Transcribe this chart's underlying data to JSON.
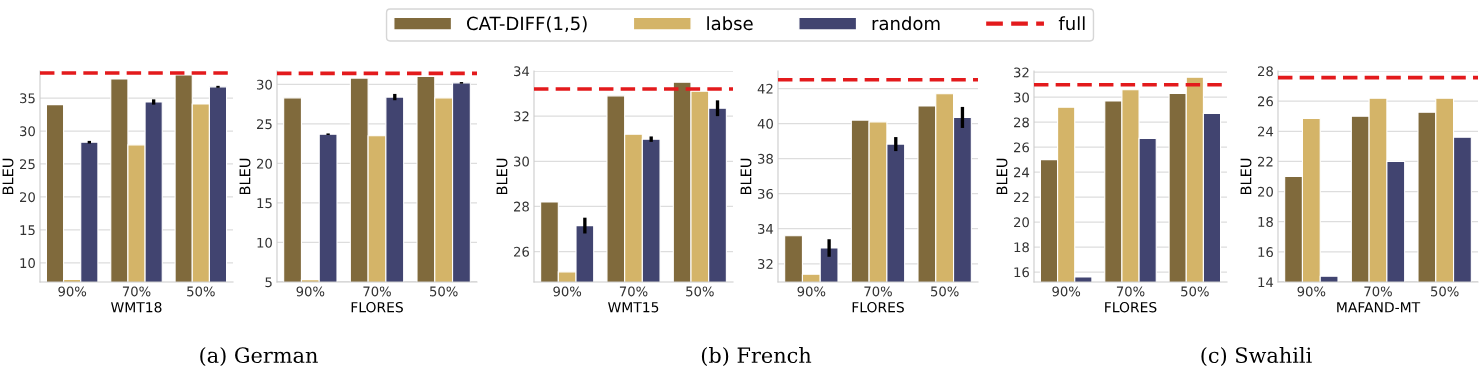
{
  "chart_data": [
    {
      "type": "bar",
      "xlabel": "WMT18",
      "ylabel": "BLEU",
      "categories": [
        "90%",
        "70%",
        "50%"
      ],
      "ylim": [
        7.1,
        39.1
      ],
      "yticks": [
        10,
        15,
        20,
        25,
        30,
        35
      ],
      "grid": "y",
      "legend": "top",
      "annotations": [
        "(a) German"
      ],
      "series": [
        {
          "name": "CAT-DIFF(1,5)",
          "color": "#806a3c",
          "values": [
            34.0,
            37.9,
            38.5
          ]
        },
        {
          "name": "labse",
          "color": "#d4b468",
          "values": [
            7.5,
            27.9,
            34.1
          ]
        },
        {
          "name": "random",
          "color": "#414470",
          "values": [
            28.3,
            34.4,
            36.7
          ],
          "errors": [
            0.2,
            0.4,
            0.15
          ]
        }
      ],
      "ref_lines": [
        {
          "axis": "y",
          "value": 38.8,
          "label": "full",
          "color": "#e31a1c",
          "line_style": "dashed"
        }
      ]
    },
    {
      "type": "bar",
      "xlabel": "FLORES",
      "ylabel": "BLEU",
      "categories": [
        "90%",
        "70%",
        "50%"
      ],
      "ylim": [
        5,
        31.7
      ],
      "yticks": [
        5,
        10,
        15,
        20,
        25,
        30
      ],
      "grid": "y",
      "series": [
        {
          "color": "#806a3c",
          "values": [
            28.3,
            30.8,
            31.0
          ]
        },
        {
          "color": "#d4b468",
          "values": [
            5.3,
            23.5,
            28.3
          ]
        },
        {
          "color": "#414470",
          "values": [
            23.7,
            28.4,
            30.2
          ],
          "errors": [
            0.1,
            0.4,
            0.1
          ]
        }
      ],
      "ref_lines": [
        {
          "axis": "y",
          "value": 31.4,
          "color": "#e31a1c",
          "line_style": "dashed"
        }
      ]
    },
    {
      "type": "bar",
      "xlabel": "WMT15",
      "ylabel": "BLEU",
      "categories": [
        "90%",
        "70%",
        "50%"
      ],
      "ylim": [
        24.65,
        34.0
      ],
      "yticks": [
        26,
        28,
        30,
        32,
        34
      ],
      "grid": "y",
      "annotations": [
        "(b) French"
      ],
      "series": [
        {
          "color": "#806a3c",
          "values": [
            28.2,
            32.9,
            33.5
          ]
        },
        {
          "color": "#d4b468",
          "values": [
            25.1,
            31.2,
            33.1
          ]
        },
        {
          "color": "#414470",
          "values": [
            27.15,
            30.98,
            32.35
          ],
          "errors": [
            0.35,
            0.12,
            0.35
          ]
        }
      ],
      "ref_lines": [
        {
          "axis": "y",
          "value": 33.2,
          "color": "#e31a1c",
          "line_style": "dashed"
        }
      ]
    },
    {
      "type": "bar",
      "xlabel": "FLORES",
      "ylabel": "BLEU",
      "categories": [
        "90%",
        "70%",
        "50%"
      ],
      "ylim": [
        30.96,
        43.0
      ],
      "yticks": [
        32,
        34,
        36,
        38,
        40,
        42
      ],
      "grid": "y",
      "series": [
        {
          "color": "#806a3c",
          "values": [
            33.6,
            40.2,
            41.0
          ]
        },
        {
          "color": "#d4b468",
          "values": [
            31.4,
            40.1,
            41.7
          ]
        },
        {
          "color": "#414470",
          "values": [
            32.9,
            38.83,
            40.35
          ],
          "errors": [
            0.5,
            0.4,
            0.6
          ]
        }
      ],
      "ref_lines": [
        {
          "axis": "y",
          "value": 42.5,
          "color": "#e31a1c",
          "line_style": "dashed"
        }
      ]
    },
    {
      "type": "bar",
      "xlabel": "FLORES",
      "ylabel": "BLEU",
      "categories": [
        "90%",
        "70%",
        "50%"
      ],
      "ylim": [
        15.2,
        32.1
      ],
      "yticks": [
        16,
        18,
        20,
        22,
        24,
        26,
        28,
        30,
        32
      ],
      "grid": "y",
      "annotations": [
        "(c) Swahili"
      ],
      "series": [
        {
          "color": "#806a3c",
          "values": [
            25.0,
            29.7,
            30.3
          ]
        },
        {
          "color": "#d4b468",
          "values": [
            29.2,
            30.6,
            31.6
          ]
        },
        {
          "color": "#414470",
          "values": [
            15.6,
            26.7,
            28.7
          ]
        }
      ],
      "ref_lines": [
        {
          "axis": "y",
          "value": 31.0,
          "color": "#e31a1c",
          "line_style": "dashed"
        }
      ]
    },
    {
      "type": "bar",
      "xlabel": "MAFAND-MT",
      "ylabel": "BLEU",
      "categories": [
        "90%",
        "70%",
        "50%"
      ],
      "ylim": [
        14,
        28
      ],
      "yticks": [
        14,
        16,
        18,
        20,
        22,
        24,
        26,
        28
      ],
      "grid": "y",
      "series": [
        {
          "color": "#806a3c",
          "values": [
            21.0,
            25.0,
            25.26
          ]
        },
        {
          "color": "#d4b468",
          "values": [
            24.86,
            26.2,
            26.2
          ]
        },
        {
          "color": "#414470",
          "values": [
            14.38,
            22.0,
            23.6
          ]
        }
      ],
      "ref_lines": [
        {
          "axis": "y",
          "value": 27.56,
          "color": "#e31a1c",
          "line_style": "dashed"
        }
      ]
    }
  ]
}
